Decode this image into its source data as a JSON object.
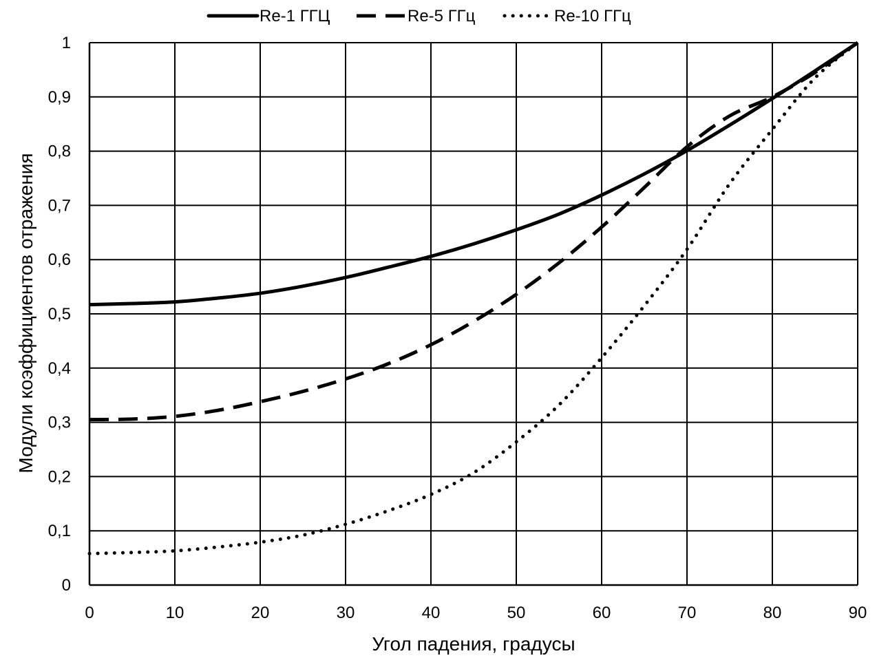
{
  "chart_data": {
    "type": "line",
    "title": "",
    "xlabel": "Угол падения, градусы",
    "ylabel": "Модули коэффициентов отражения",
    "xlim": [
      0,
      90
    ],
    "ylim": [
      0,
      1
    ],
    "xticks": [
      0,
      10,
      20,
      30,
      40,
      50,
      60,
      70,
      80,
      90
    ],
    "yticks": [
      0,
      0.1,
      0.2,
      0.3,
      0.4,
      0.5,
      0.6,
      0.7,
      0.8,
      0.9,
      1
    ],
    "ytick_labels": [
      "0",
      "0,1",
      "0,2",
      "0,3",
      "0,4",
      "0,5",
      "0,6",
      "0,7",
      "0,8",
      "0,9",
      "1"
    ],
    "xtick_labels": [
      "0",
      "10",
      "20",
      "30",
      "40",
      "50",
      "60",
      "70",
      "80",
      "90"
    ],
    "grid": true,
    "legend_position": "top",
    "line_color": "#000000",
    "x": [
      0,
      5,
      10,
      15,
      20,
      25,
      30,
      35,
      40,
      45,
      50,
      55,
      60,
      65,
      70,
      75,
      80,
      85,
      90
    ],
    "series": [
      {
        "name": "Re-1 ГГЦ",
        "style": "solid",
        "values": [
          0.517,
          0.519,
          0.522,
          0.529,
          0.538,
          0.551,
          0.567,
          0.586,
          0.606,
          0.629,
          0.655,
          0.684,
          0.719,
          0.758,
          0.801,
          0.848,
          0.897,
          0.948,
          1.0
        ]
      },
      {
        "name": "Re-5 ГГц",
        "style": "dashed",
        "values": [
          0.305,
          0.306,
          0.311,
          0.322,
          0.338,
          0.357,
          0.38,
          0.408,
          0.443,
          0.486,
          0.536,
          0.594,
          0.66,
          0.733,
          0.808,
          0.865,
          0.9,
          0.945,
          1.0
        ]
      },
      {
        "name": "Re-10 ГГц",
        "style": "dotted",
        "values": [
          0.058,
          0.06,
          0.063,
          0.07,
          0.079,
          0.092,
          0.112,
          0.137,
          0.167,
          0.207,
          0.264,
          0.332,
          0.419,
          0.515,
          0.619,
          0.74,
          0.84,
          0.935,
          1.0
        ]
      }
    ]
  }
}
